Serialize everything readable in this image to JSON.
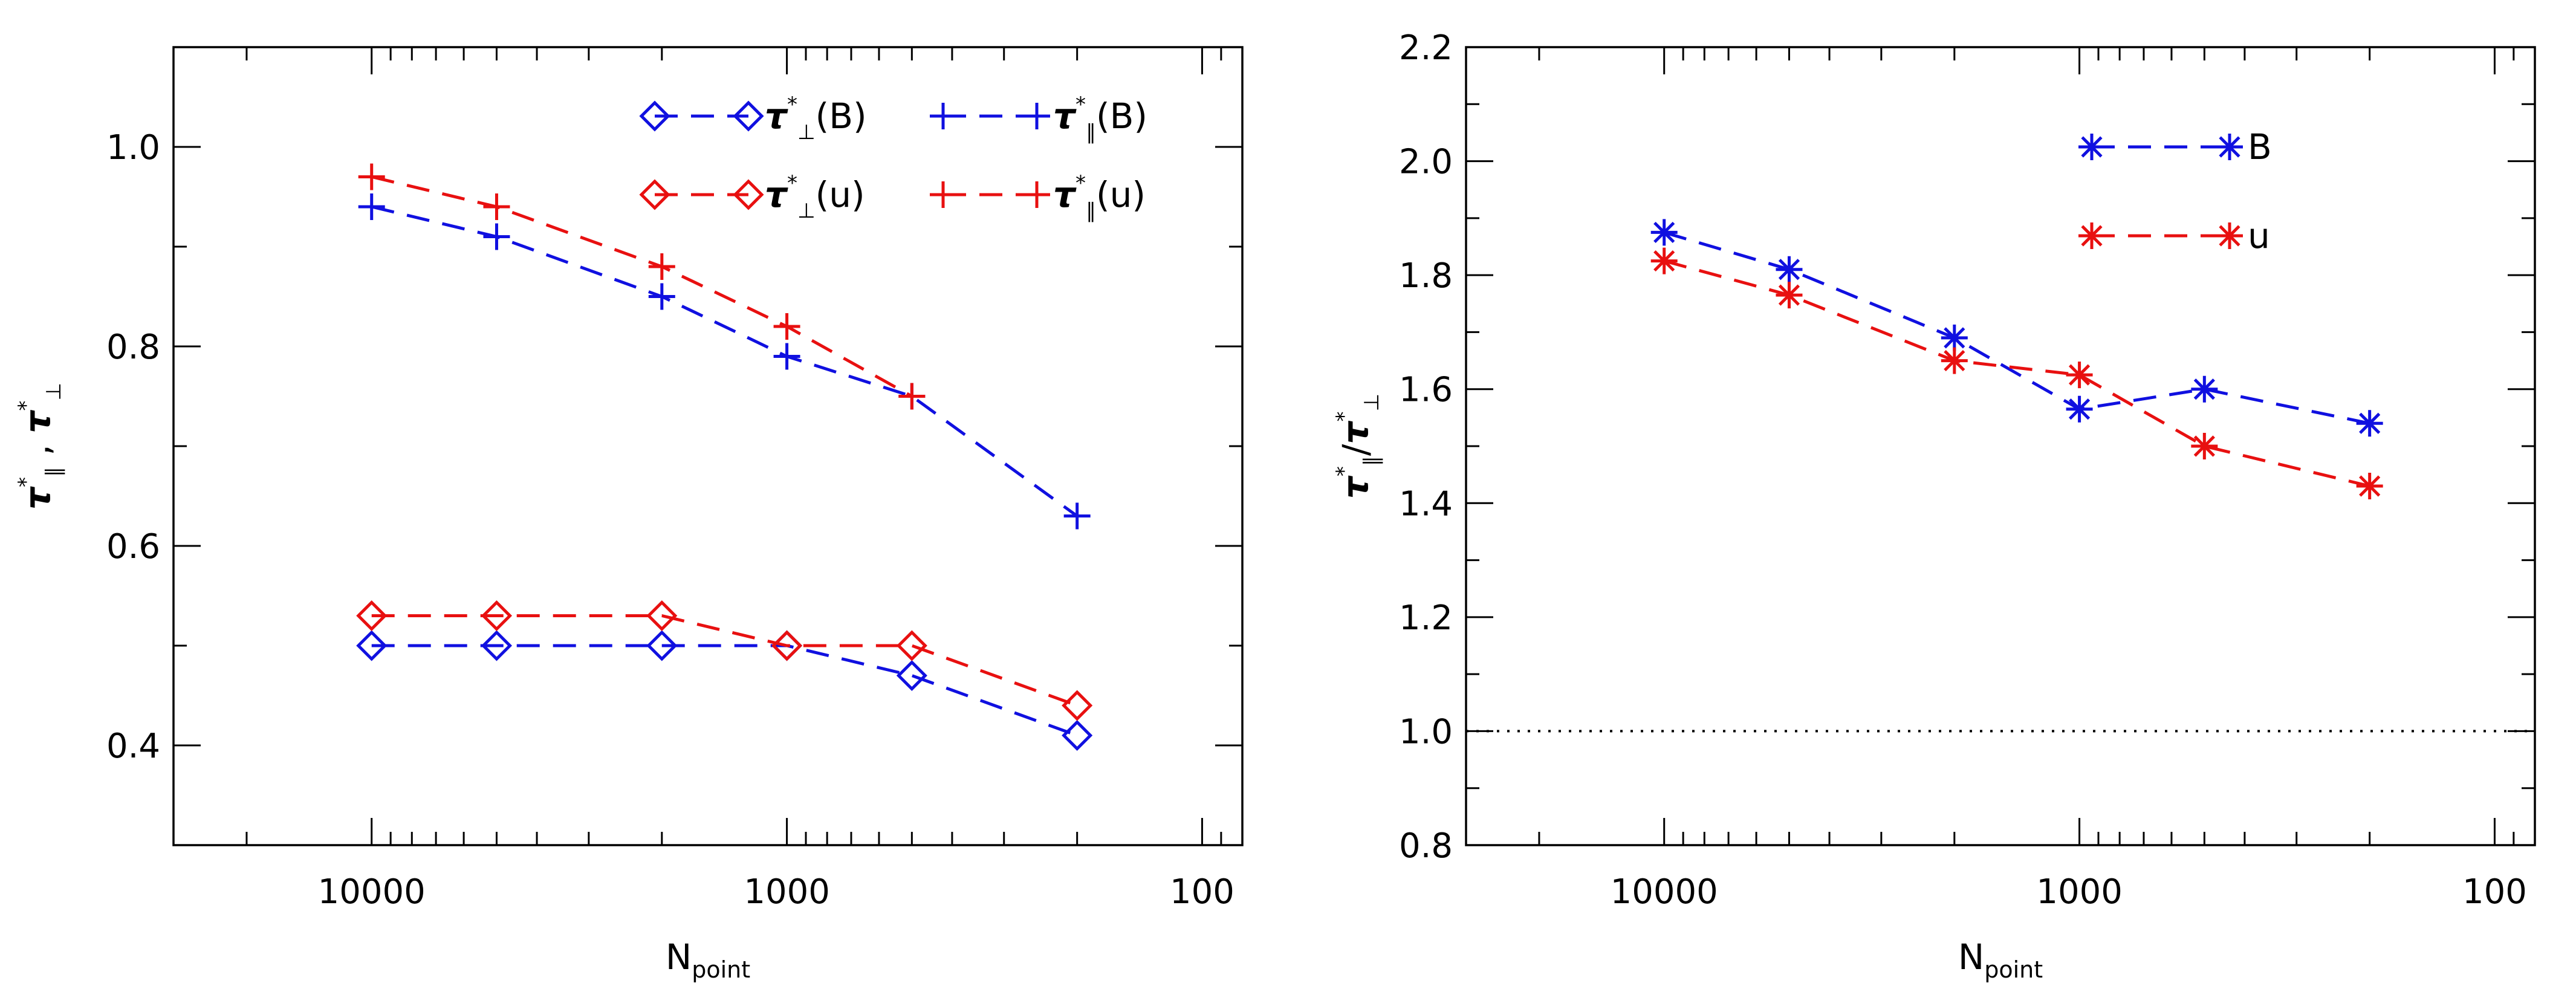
{
  "chart_data": [
    {
      "type": "line",
      "xscale": "log",
      "xreversed": true,
      "xlim": [
        30000,
        80
      ],
      "ylim": [
        0.3,
        1.1
      ],
      "xticks": [
        10000,
        1000,
        100
      ],
      "xtick_labels": [
        "10000",
        "1000",
        "100"
      ],
      "yticks": [
        0.4,
        0.6,
        0.8,
        1.0
      ],
      "ytick_labels": [
        "0.4",
        "0.6",
        "0.8",
        "1.0"
      ],
      "xlabel": {
        "base": "N",
        "sub": "point"
      },
      "ylabel": {
        "tau": "τ",
        "star": "*",
        "par": "∥",
        "sep": " , ",
        "perp": "⊥"
      },
      "x": [
        10000,
        5000,
        2000,
        1000,
        500,
        200
      ],
      "series": [
        {
          "name": "tau_perp_B",
          "label": {
            "tau": "τ",
            "star": "*",
            "sym": "⊥",
            "arg": "(B)"
          },
          "color": "#1010e0",
          "marker": "diamond",
          "values": [
            0.5,
            0.5,
            0.5,
            0.5,
            0.47,
            0.41
          ]
        },
        {
          "name": "tau_par_B",
          "label": {
            "tau": "τ",
            "star": "*",
            "sym": "∥",
            "arg": "(B)"
          },
          "color": "#1010e0",
          "marker": "plus",
          "values": [
            0.94,
            0.91,
            0.85,
            0.79,
            0.75,
            0.63
          ]
        },
        {
          "name": "tau_perp_u",
          "label": {
            "tau": "τ",
            "star": "*",
            "sym": "⊥",
            "arg": "(u)"
          },
          "color": "#e81010",
          "marker": "diamond",
          "values": [
            0.53,
            0.53,
            0.53,
            0.5,
            0.5,
            0.44
          ]
        },
        {
          "name": "tau_par_u",
          "label": {
            "tau": "τ",
            "star": "*",
            "sym": "∥",
            "arg": "(u)"
          },
          "color": "#e81010",
          "marker": "plus",
          "values": [
            0.97,
            0.94,
            0.88,
            0.82,
            0.75,
            null
          ]
        }
      ]
    },
    {
      "type": "line",
      "xscale": "log",
      "xreversed": true,
      "xlim": [
        30000,
        80
      ],
      "ylim": [
        0.8,
        2.2
      ],
      "xticks": [
        10000,
        1000,
        100
      ],
      "xtick_labels": [
        "10000",
        "1000",
        "100"
      ],
      "yticks": [
        0.8,
        1.0,
        1.2,
        1.4,
        1.6,
        1.8,
        2.0,
        2.2
      ],
      "ytick_labels": [
        "0.8",
        "1.0",
        "1.2",
        "1.4",
        "1.6",
        "1.8",
        "2.0",
        "2.2"
      ],
      "xlabel": {
        "base": "N",
        "sub": "point"
      },
      "ylabel": {
        "tau": "τ",
        "star": "*",
        "par": "∥",
        "slash": "/",
        "perp": "⊥"
      },
      "reference_line": {
        "y": 1.0,
        "style": "dotted"
      },
      "x": [
        10000,
        5000,
        2000,
        1000,
        500,
        200
      ],
      "series": [
        {
          "name": "ratio_B",
          "label": "B",
          "color": "#1010e0",
          "marker": "asterisk",
          "values": [
            1.875,
            1.81,
            1.69,
            1.565,
            1.6,
            1.54
          ]
        },
        {
          "name": "ratio_u",
          "label": "u",
          "color": "#e81010",
          "marker": "asterisk",
          "values": [
            1.825,
            1.765,
            1.65,
            1.625,
            1.5,
            1.43
          ]
        }
      ]
    }
  ]
}
